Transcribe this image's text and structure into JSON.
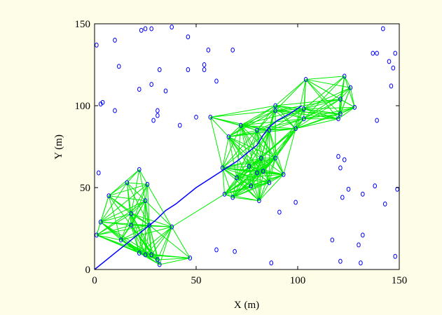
{
  "chart_data": {
    "type": "scatter",
    "xlabel": "X (m)",
    "ylabel": "Y (m)",
    "xlim": [
      0,
      150
    ],
    "ylim": [
      0,
      150
    ],
    "xticks": [
      0,
      50,
      100,
      150
    ],
    "yticks": [
      0,
      50,
      100,
      150
    ],
    "color": "#0000ff",
    "link_color": "#00ee00",
    "x": [
      1,
      10,
      12,
      23,
      25,
      28,
      38,
      46,
      56,
      68,
      54,
      54,
      46,
      32,
      28,
      35,
      22,
      60,
      4,
      3,
      10,
      31,
      31,
      29,
      42,
      50,
      57,
      66,
      72,
      80,
      89,
      89,
      104,
      123,
      126,
      121,
      121,
      120,
      128,
      103,
      103,
      99,
      120,
      123,
      121,
      125,
      122,
      132,
      138,
      143,
      149,
      139,
      146,
      145,
      147,
      148,
      137,
      139,
      142,
      2,
      3,
      1,
      7,
      13,
      18,
      18,
      16,
      22,
      26,
      25,
      27,
      22,
      25,
      28,
      31,
      32,
      38,
      47,
      60,
      69,
      87,
      117,
      121,
      131,
      132,
      130,
      148,
      63,
      64,
      68,
      70,
      76,
      77,
      80,
      83,
      81,
      86,
      89,
      93,
      99,
      91,
      86,
      82
    ],
    "y": [
      137,
      140,
      124,
      146,
      147,
      147,
      148,
      142,
      134,
      134,
      125,
      122,
      122,
      122,
      113,
      109,
      110,
      115,
      102,
      101,
      97,
      97,
      94,
      91,
      88,
      93,
      93,
      81,
      88,
      85,
      100,
      97,
      116,
      118,
      111,
      104,
      95,
      92,
      99,
      98,
      92,
      86,
      69,
      67,
      62,
      49,
      44,
      46,
      51,
      40,
      49,
      91,
      112,
      127,
      123,
      132,
      132,
      132,
      147,
      59,
      29,
      21,
      45,
      18,
      34,
      27,
      53,
      61,
      52,
      42,
      27,
      10,
      9,
      9,
      6,
      3,
      26,
      7,
      12,
      11,
      4,
      18,
      5,
      4,
      21,
      15,
      8,
      62,
      46,
      44,
      56,
      63,
      51,
      59,
      60,
      42,
      53,
      68,
      58,
      41,
      35,
      85,
      68
    ],
    "path": {
      "x": [
        0,
        5,
        10,
        15,
        20,
        25,
        30,
        35,
        40,
        45,
        50,
        55,
        60,
        65,
        70,
        75,
        80,
        83,
        86,
        90,
        96,
        102
      ],
      "y": [
        0,
        5,
        10,
        15,
        20,
        25,
        30,
        36,
        40,
        45,
        50,
        54,
        58,
        62,
        66,
        71,
        76,
        82,
        87,
        91,
        95,
        100
      ],
      "color": "#0000ff"
    }
  }
}
